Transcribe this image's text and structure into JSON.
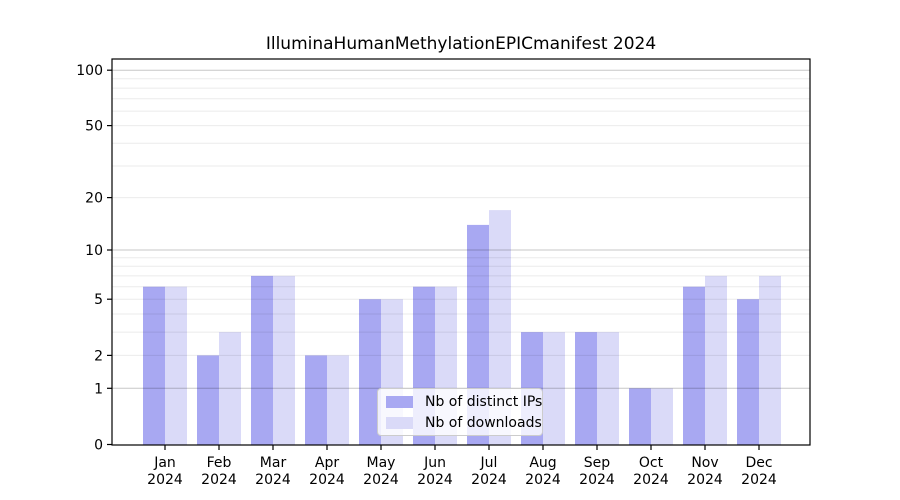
{
  "title": "IlluminaHumanMethylationEPICmanifest 2024",
  "colors": {
    "distinct_ips": "#a8a8f2",
    "downloads": "#dadaf8",
    "axis": "#000000",
    "grid_major": "rgba(0,0,0,0.22)",
    "grid_minor": "rgba(0,0,0,0.08)",
    "background": "#ffffff"
  },
  "legend": {
    "items": [
      {
        "key": "distinct_ips",
        "label": "Nb of distinct IPs"
      },
      {
        "key": "downloads",
        "label": "Nb of downloads"
      }
    ]
  },
  "chart_data": {
    "type": "bar",
    "title": "IlluminaHumanMethylationEPICmanifest 2024",
    "categories": [
      "Jan",
      "Feb",
      "Mar",
      "Apr",
      "May",
      "Jun",
      "Jul",
      "Aug",
      "Sep",
      "Oct",
      "Nov",
      "Dec"
    ],
    "year_label": "2024",
    "series": [
      {
        "key": "distinct_ips",
        "name": "Nb of distinct IPs",
        "values": [
          6,
          2,
          7,
          2,
          5,
          6,
          14,
          3,
          3,
          1,
          6,
          5
        ]
      },
      {
        "key": "downloads",
        "name": "Nb of downloads",
        "values": [
          6,
          3,
          7,
          2,
          5,
          6,
          17,
          3,
          3,
          1,
          7,
          7
        ]
      }
    ],
    "xlabel": "",
    "ylabel": "",
    "yscale": "log1p",
    "ylim": [
      0,
      115
    ],
    "yticks": [
      0,
      1,
      2,
      5,
      10,
      20,
      50,
      100
    ],
    "grid": {
      "major": [
        1,
        10,
        100
      ],
      "minor": [
        2,
        3,
        4,
        5,
        6,
        7,
        8,
        9,
        20,
        30,
        40,
        50,
        60,
        70,
        80,
        90
      ]
    },
    "legend_position": "lower center"
  }
}
